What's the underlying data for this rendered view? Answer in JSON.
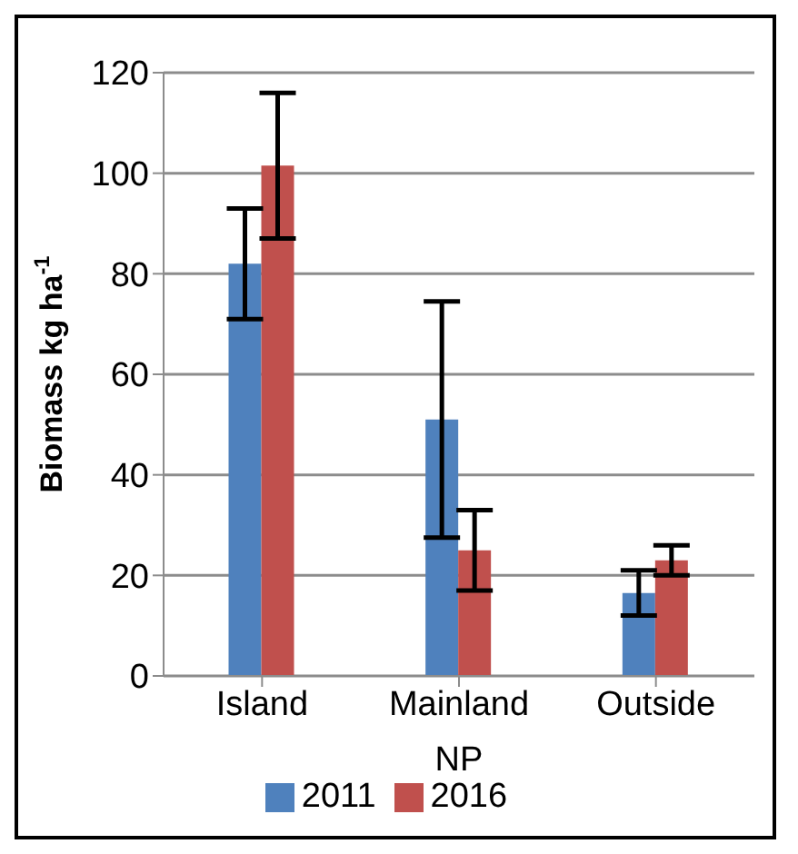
{
  "chart_data": {
    "type": "bar",
    "categories": [
      "Island",
      "Mainland",
      "Outside"
    ],
    "xlabel": "NP",
    "ylabel": "Biomass kg ha$^{-1}$",
    "series": [
      {
        "name": "2011",
        "color": "#4f81bd",
        "values": [
          82,
          51,
          16.5
        ],
        "errors": [
          11,
          23.5,
          4.5
        ]
      },
      {
        "name": "2016",
        "color": "#c0504d",
        "values": [
          101.5,
          25,
          23
        ],
        "errors": [
          14.5,
          8,
          3
        ]
      }
    ],
    "ylim": [
      0,
      120
    ],
    "yticks": [
      0,
      20,
      40,
      60,
      80,
      100,
      120
    ],
    "grid": "y",
    "legend": "bottom"
  }
}
